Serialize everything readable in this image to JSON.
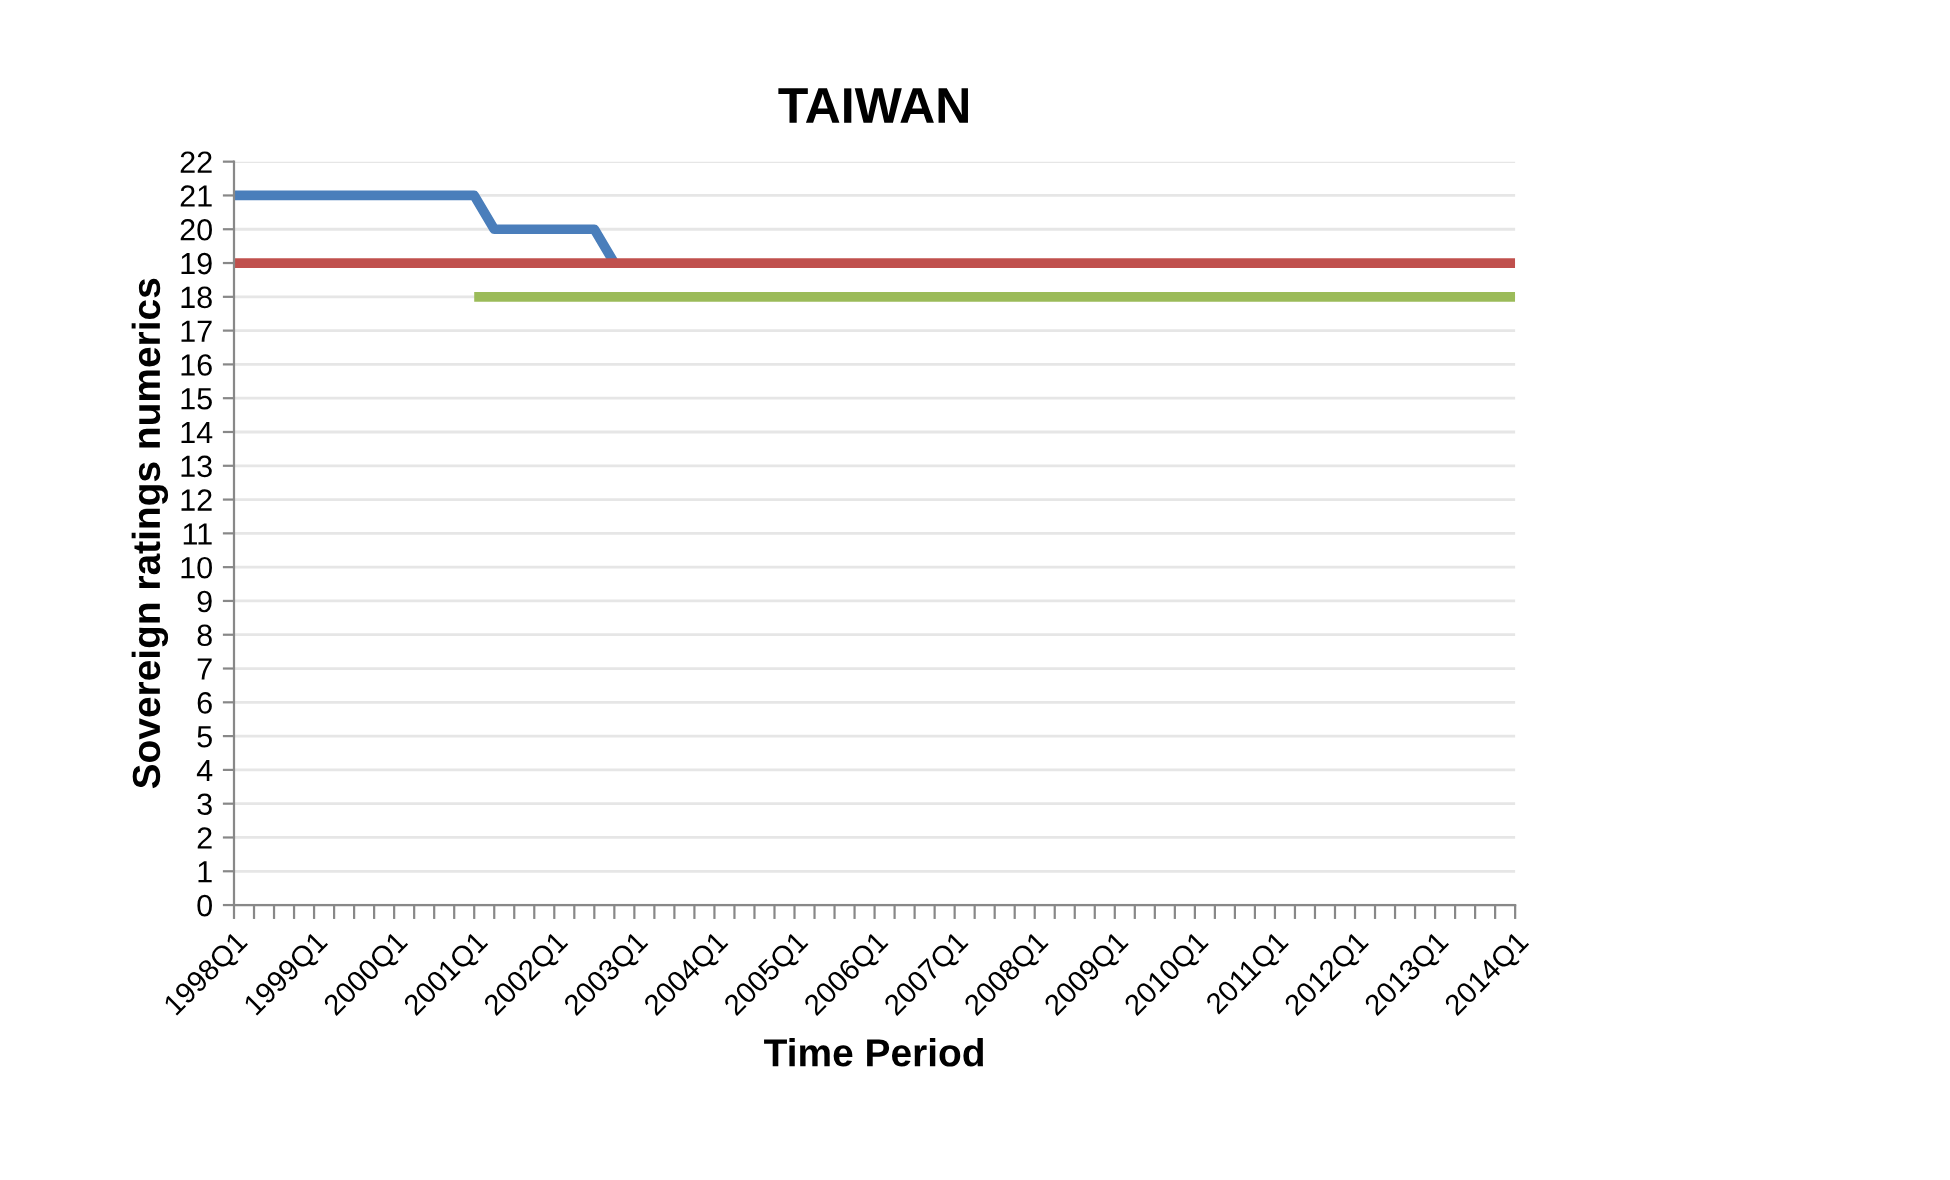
{
  "chart_data": {
    "type": "line",
    "title": "TAIWAN",
    "xlabel": "Time Period",
    "ylabel": "Sovereign ratings numerics",
    "categories": [
      "1998Q1",
      null,
      null,
      null,
      "1999Q1",
      null,
      null,
      null,
      "2000Q1",
      null,
      null,
      null,
      "2001Q1",
      null,
      null,
      null,
      "2002Q1",
      null,
      null,
      null,
      "2003Q1",
      null,
      null,
      null,
      "2004Q1",
      null,
      null,
      null,
      "2005Q1",
      null,
      null,
      null,
      "2006Q1",
      null,
      null,
      null,
      "2007Q1",
      null,
      null,
      null,
      "2008Q1",
      null,
      null,
      null,
      "2009Q1",
      null,
      null,
      null,
      "2010Q1",
      null,
      null,
      null,
      "2011Q1",
      null,
      null,
      null,
      "2012Q1",
      null,
      null,
      null,
      "2013Q1",
      null,
      null,
      null,
      "2014Q1"
    ],
    "series": [
      {
        "color": "#4a7ebb",
        "values": [
          21,
          21,
          21,
          21,
          21,
          21,
          21,
          21,
          21,
          21,
          21,
          21,
          21,
          20,
          20,
          20,
          20,
          20,
          20,
          19,
          null,
          null,
          null,
          null,
          null,
          null,
          null,
          null,
          null,
          null,
          null,
          null,
          null,
          null,
          null,
          null,
          null,
          null,
          null,
          null,
          null,
          null,
          null,
          null,
          null,
          null,
          null,
          null,
          null,
          null,
          null,
          null,
          null,
          null,
          null,
          null,
          null,
          null,
          null,
          null,
          null,
          null,
          null,
          null,
          null
        ]
      },
      {
        "color": "#c0504d",
        "values": [
          19,
          19,
          19,
          19,
          19,
          19,
          19,
          19,
          19,
          19,
          19,
          19,
          19,
          19,
          19,
          19,
          19,
          19,
          19,
          19,
          19,
          19,
          19,
          19,
          19,
          19,
          19,
          19,
          19,
          19,
          19,
          19,
          19,
          19,
          19,
          19,
          19,
          19,
          19,
          19,
          19,
          19,
          19,
          19,
          19,
          19,
          19,
          19,
          19,
          19,
          19,
          19,
          19,
          19,
          19,
          19,
          19,
          19,
          19,
          19,
          19,
          19,
          19,
          19,
          19
        ]
      },
      {
        "color": "#9bbb59",
        "values": [
          null,
          null,
          null,
          null,
          null,
          null,
          null,
          null,
          null,
          null,
          null,
          null,
          18,
          18,
          18,
          18,
          18,
          18,
          18,
          18,
          18,
          18,
          18,
          18,
          18,
          18,
          18,
          18,
          18,
          18,
          18,
          18,
          18,
          18,
          18,
          18,
          18,
          18,
          18,
          18,
          18,
          18,
          18,
          18,
          18,
          18,
          18,
          18,
          18,
          18,
          18,
          18,
          18,
          18,
          18,
          18,
          18,
          18,
          18,
          18,
          18,
          18,
          18,
          18,
          18
        ]
      }
    ],
    "ylim": [
      0,
      22
    ],
    "yticks": [
      0,
      1,
      2,
      3,
      4,
      5,
      6,
      7,
      8,
      9,
      10,
      11,
      12,
      13,
      14,
      15,
      16,
      17,
      18,
      19,
      20,
      21,
      22
    ],
    "grid": "y",
    "marker": "none",
    "line_style": "solid"
  }
}
